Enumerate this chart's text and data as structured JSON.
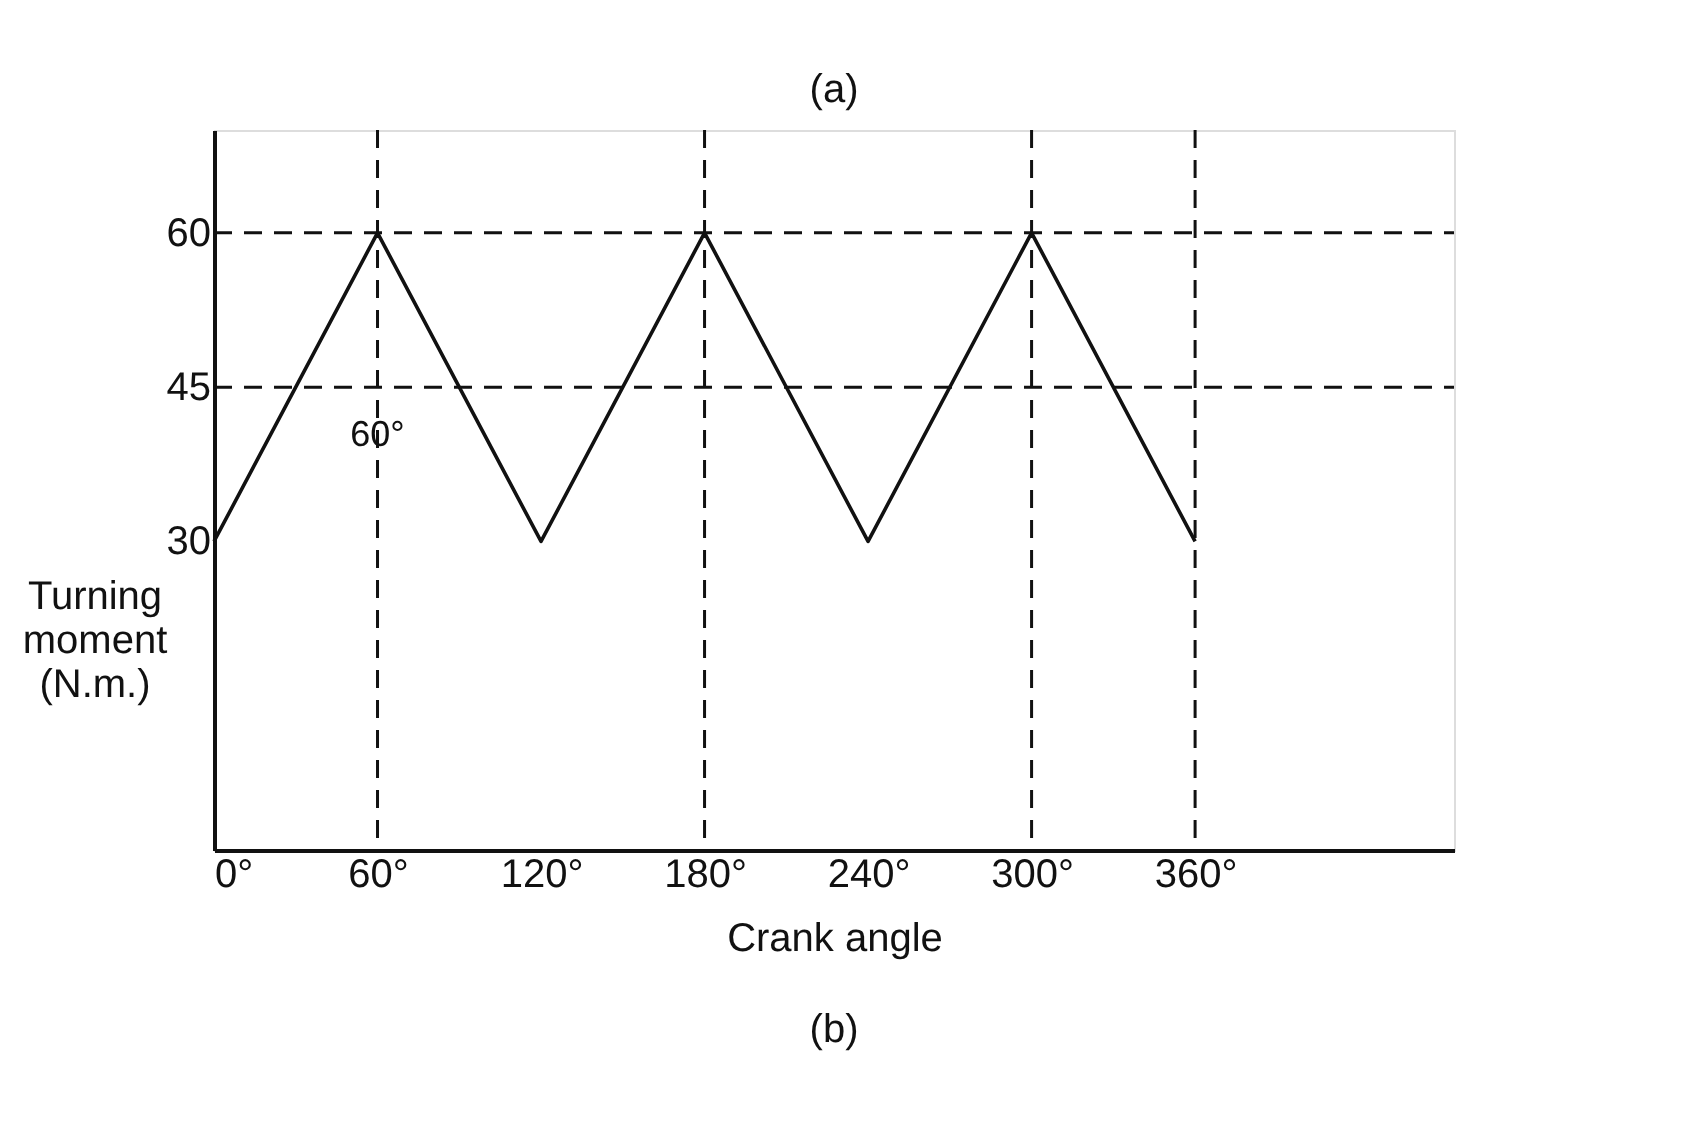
{
  "chart_data": {
    "type": "line",
    "xlabel": "Crank angle",
    "ylabel": "Turning moment (N.m.)",
    "annotations": [
      "(a)",
      "(b)",
      {
        "text": "60°",
        "x": 60,
        "y": 42
      }
    ],
    "series": [
      {
        "color": "#111111",
        "x": [
          0,
          60,
          120,
          180,
          240,
          300,
          360
        ],
        "values": [
          30,
          60,
          30,
          60,
          30,
          60,
          30
        ]
      }
    ],
    "xlim": [
      0,
      455
    ],
    "ylim": [
      0,
      70
    ],
    "xticks": [
      {
        "value": 0,
        "label": "0°"
      },
      {
        "value": 60,
        "label": "60°"
      },
      {
        "value": 120,
        "label": "120°"
      },
      {
        "value": 180,
        "label": "180°"
      },
      {
        "value": 240,
        "label": "240°"
      },
      {
        "value": 300,
        "label": "300°"
      },
      {
        "value": 360,
        "label": "360°"
      }
    ],
    "yticks": [
      30,
      45,
      60
    ],
    "ref_lines": [
      {
        "axis": "y",
        "value": 45,
        "line_style": "dashed"
      },
      {
        "axis": "y",
        "value": 60,
        "line_style": "dashed"
      },
      {
        "axis": "x",
        "value": 60,
        "line_style": "dashed"
      },
      {
        "axis": "x",
        "value": 180,
        "line_style": "dashed"
      },
      {
        "axis": "x",
        "value": 300,
        "line_style": "dashed"
      },
      {
        "axis": "x",
        "value": 360,
        "line_style": "dashed"
      }
    ],
    "grid": false,
    "marker": "none",
    "line_style": "solid"
  }
}
